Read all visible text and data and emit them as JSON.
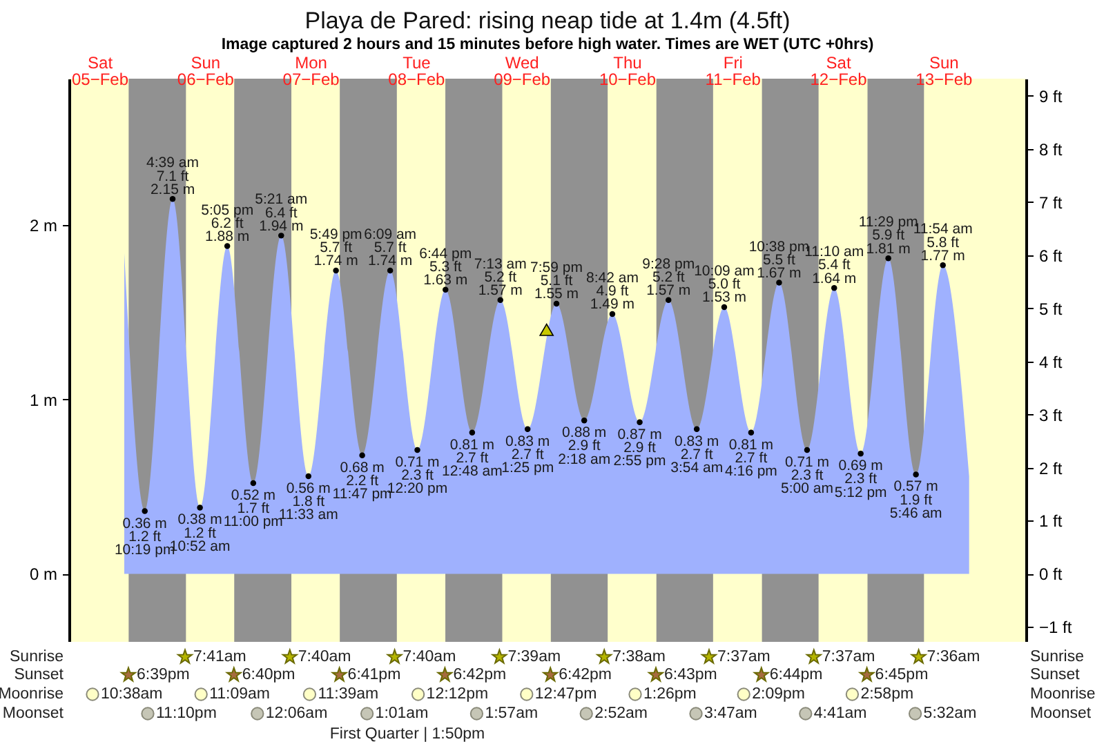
{
  "chart_data": [
    {
      "type": "area",
      "title": "Playa de Pared: rising  neap tide at 1.4m (4.5ft)",
      "subtitle": "Image captured 2 hours and 15 minutes before high water. Times are WET (UTC +0hrs)",
      "xlim": [
        "--02-05T05:05",
        "--02-14T06:48"
      ],
      "xticks": [
        {
          "value": "--02-05T12:00",
          "label": "Sat\n05−Feb"
        },
        {
          "value": "--02-06T12:00",
          "label": "Sun\n06−Feb"
        },
        {
          "value": "--02-07T12:00",
          "label": "Mon\n07−Feb"
        },
        {
          "value": "--02-08T12:00",
          "label": "Tue\n08−Feb"
        },
        {
          "value": "--02-09T12:00",
          "label": "Wed\n09−Feb"
        },
        {
          "value": "--02-10T12:00",
          "label": "Thu\n10−Feb"
        },
        {
          "value": "--02-11T12:00",
          "label": "Fri\n11−Feb"
        },
        {
          "value": "--02-12T12:00",
          "label": "Sat\n12−Feb"
        },
        {
          "value": "--02-13T12:00",
          "label": "Sun\n13−Feb"
        }
      ],
      "ylim": [
        -0.39,
        2.84
      ],
      "yticks": [
        {
          "value": 0,
          "label": "0 m"
        },
        {
          "value": 1,
          "label": "1 m"
        },
        {
          "value": 2,
          "label": "2 m"
        }
      ],
      "y2lim": [
        -1.28,
        9.32
      ],
      "y2ticks": [
        {
          "value": -1,
          "label": "−1 ft"
        },
        {
          "value": 0,
          "label": "0 ft"
        },
        {
          "value": 1,
          "label": "1 ft"
        },
        {
          "value": 2,
          "label": "2 ft"
        },
        {
          "value": 3,
          "label": "3 ft"
        },
        {
          "value": 4,
          "label": "4 ft"
        },
        {
          "value": 5,
          "label": "5 ft"
        },
        {
          "value": 6,
          "label": "6 ft"
        },
        {
          "value": 7,
          "label": "7 ft"
        },
        {
          "value": 8,
          "label": "8 ft"
        },
        {
          "value": 9,
          "label": "9 ft"
        }
      ],
      "bands": [
        {
          "axis": "x",
          "from": "--02-05T18:39",
          "to": "--02-06T07:41",
          "color": "#919191"
        },
        {
          "axis": "x",
          "from": "--02-06T18:40",
          "to": "--02-07T07:40",
          "color": "#919191"
        },
        {
          "axis": "x",
          "from": "--02-07T18:41",
          "to": "--02-08T07:40",
          "color": "#919191"
        },
        {
          "axis": "x",
          "from": "--02-08T18:42",
          "to": "--02-09T07:39",
          "color": "#919191"
        },
        {
          "axis": "x",
          "from": "--02-09T18:42",
          "to": "--02-10T07:38",
          "color": "#919191"
        },
        {
          "axis": "x",
          "from": "--02-10T18:43",
          "to": "--02-11T07:37",
          "color": "#919191"
        },
        {
          "axis": "x",
          "from": "--02-11T18:44",
          "to": "--02-12T07:37",
          "color": "#919191"
        },
        {
          "axis": "x",
          "from": "--02-12T18:45",
          "to": "--02-13T07:36",
          "color": "#919191"
        }
      ],
      "series": [
        {
          "color": "#9fb1fe",
          "x": [
            "--02-05T17:39",
            "--02-05T22:19",
            "--02-06T04:39",
            "--02-06T10:52",
            "--02-06T17:05",
            "--02-06T23:00",
            "--02-07T05:21",
            "--02-07T11:33",
            "--02-07T17:49",
            "--02-07T23:47",
            "--02-08T06:09",
            "--02-08T12:20",
            "--02-08T18:44",
            "--02-09T00:48",
            "--02-09T07:13",
            "--02-09T13:25",
            "--02-09T19:59",
            "--02-10T02:18",
            "--02-10T08:42",
            "--02-10T14:55",
            "--02-10T21:28",
            "--02-11T03:54",
            "--02-11T10:09",
            "--02-11T16:16",
            "--02-11T22:38",
            "--02-12T05:00",
            "--02-12T11:10",
            "--02-12T17:12",
            "--02-12T23:29",
            "--02-13T05:46",
            "--02-13T11:54",
            "--02-13T17:52"
          ],
          "values": [
            1.84,
            0.36,
            2.15,
            0.38,
            1.88,
            0.52,
            1.94,
            0.56,
            1.74,
            0.68,
            1.74,
            0.71,
            1.63,
            0.81,
            1.57,
            0.83,
            1.55,
            0.88,
            1.49,
            0.87,
            1.57,
            0.83,
            1.53,
            0.81,
            1.67,
            0.71,
            1.64,
            0.69,
            1.81,
            0.57,
            1.77,
            0.56
          ]
        },
        {
          "type": "scatter",
          "marker": "circle",
          "color": "#000000",
          "x": [
            "--02-05T22:19",
            "--02-06T04:39",
            "--02-06T10:52",
            "--02-06T17:05",
            "--02-06T23:00",
            "--02-07T05:21",
            "--02-07T11:33",
            "--02-07T17:49",
            "--02-07T23:47",
            "--02-08T06:09",
            "--02-08T12:20",
            "--02-08T18:44",
            "--02-09T00:48",
            "--02-09T07:13",
            "--02-09T13:25",
            "--02-09T19:59",
            "--02-10T02:18",
            "--02-10T08:42",
            "--02-10T14:55",
            "--02-10T21:28",
            "--02-11T03:54",
            "--02-11T10:09",
            "--02-11T16:16",
            "--02-11T22:38",
            "--02-12T05:00",
            "--02-12T11:10",
            "--02-12T17:12",
            "--02-12T23:29",
            "--02-13T05:46",
            "--02-13T11:54"
          ],
          "values": [
            0.36,
            2.15,
            0.38,
            1.88,
            0.52,
            1.94,
            0.56,
            1.74,
            0.68,
            1.74,
            0.71,
            1.63,
            0.81,
            1.57,
            0.83,
            1.55,
            0.88,
            1.49,
            0.87,
            1.57,
            0.83,
            1.53,
            0.81,
            1.67,
            0.71,
            1.64,
            0.69,
            1.81,
            0.57,
            1.77
          ],
          "value_labels": [
            "0.36 m\n1.2 ft\n10:19 pm",
            "4:39 am\n7.1 ft\n2.15 m",
            "0.38 m\n1.2 ft\n10:52 am",
            "5:05 pm\n6.2 ft\n1.88 m",
            "0.52 m\n1.7 ft\n11:00 pm",
            "5:21 am\n6.4 ft\n1.94 m",
            "0.56 m\n1.8 ft\n11:33 am",
            "5:49 pm\n5.7 ft\n1.74 m",
            "0.68 m\n2.2 ft\n11:47 pm",
            "6:09 am\n5.7 ft\n1.74 m",
            "0.71 m\n2.3 ft\n12:20 pm",
            "6:44 pm\n5.3 ft\n1.63 m",
            "0.81 m\n2.7 ft\n12:48 am",
            "7:13 am\n5.2 ft\n1.57 m",
            "0.83 m\n2.7 ft\n1:25 pm",
            "7:59 pm\n5.1 ft\n1.55 m",
            "0.88 m\n2.9 ft\n2:18 am",
            "8:42 am\n4.9 ft\n1.49 m",
            "0.87 m\n2.9 ft\n2:55 pm",
            "9:28 pm\n5.2 ft\n1.57 m",
            "0.83 m\n2.7 ft\n3:54 am",
            "10:09 am\n5.0 ft\n1.53 m",
            "0.81 m\n2.7 ft\n4:16 pm",
            "10:38 pm\n5.5 ft\n1.67 m",
            "0.71 m\n2.3 ft\n5:00 am",
            "11:10 am\n5.4 ft\n1.64 m",
            "0.69 m\n2.3 ft\n5:12 pm",
            "11:29 pm\n5.9 ft\n1.81 m",
            "0.57 m\n1.9 ft\n5:46 am",
            "11:54 am\n5.8 ft\n1.77 m"
          ]
        },
        {
          "type": "scatter",
          "marker": "triangle",
          "color": "#c8c800",
          "x": [
            "--02-09T17:44"
          ],
          "values": [
            1.4
          ]
        }
      ]
    },
    {
      "type": "other",
      "y_categories": [
        "Sunrise",
        "Sunset",
        "Moonrise",
        "Moonset"
      ],
      "y2_categories": [
        "Sunrise",
        "Sunset",
        "Moonrise",
        "Moonset"
      ],
      "cell_labels": [
        [
          "7:41am",
          "7:40am",
          "7:40am",
          "7:39am",
          "7:38am",
          "7:37am",
          "7:37am",
          "7:36am"
        ],
        [
          "6:39pm",
          "6:40pm",
          "6:41pm",
          "6:42pm",
          "6:42pm",
          "6:43pm",
          "6:44pm",
          "6:45pm"
        ],
        [
          "10:38am",
          "11:09am",
          "11:39am",
          "12:12pm",
          "12:47pm",
          "1:26pm",
          "2:09pm",
          "2:58pm"
        ],
        [
          "11:10pm",
          "12:06am",
          "1:01am",
          "1:57am",
          "2:52am",
          "3:47am",
          "4:41am",
          "5:32am"
        ]
      ],
      "annotations": [
        "First Quarter | 1:50pm"
      ]
    }
  ]
}
